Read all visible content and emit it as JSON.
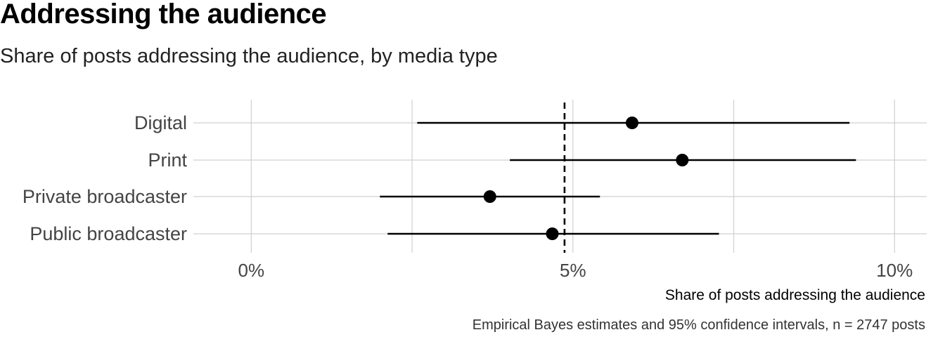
{
  "chart_data": {
    "type": "scatter",
    "title": "Addressing the audience",
    "subtitle": "Share of posts addressing the audience, by media type",
    "xlabel": "Share of posts addressing the audience",
    "ylabel": "",
    "caption": "Empirical Bayes estimates and 95% confidence intervals, n = 2747 posts",
    "xlim": [
      -0.9,
      10.5
    ],
    "x_ticks": [
      0,
      5,
      10
    ],
    "x_tick_labels": [
      "0%",
      "5%",
      "10%"
    ],
    "x_minor_ticks": [
      2.5,
      7.5
    ],
    "reference_line": 4.87,
    "categories": [
      "Digital",
      "Print",
      "Private broadcaster",
      "Public broadcaster"
    ],
    "points": [
      {
        "category": "Digital",
        "estimate": 5.92,
        "lower": 2.58,
        "upper": 9.3
      },
      {
        "category": "Print",
        "estimate": 6.7,
        "lower": 4.02,
        "upper": 9.4
      },
      {
        "category": "Private broadcaster",
        "estimate": 3.71,
        "lower": 2.0,
        "upper": 5.42
      },
      {
        "category": "Public broadcaster",
        "estimate": 4.68,
        "lower": 2.12,
        "upper": 7.27
      }
    ],
    "grid": true,
    "legend": "none",
    "colors": {
      "point": "#000000",
      "interval": "#000000",
      "grid": "#d0d0d0",
      "tick_label": "#444444"
    }
  }
}
